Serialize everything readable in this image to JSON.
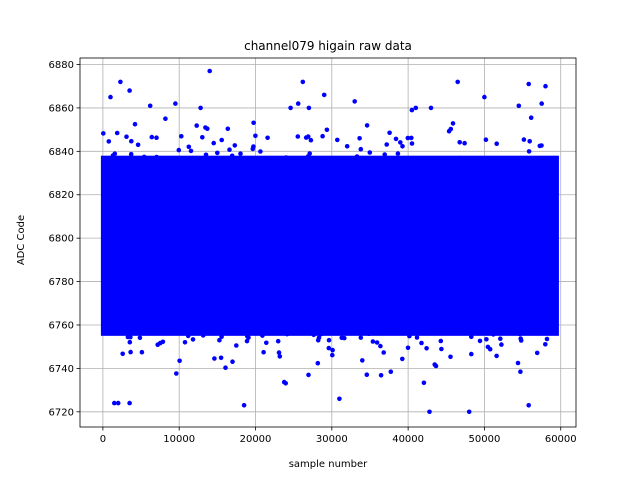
{
  "chart_data": {
    "type": "scatter",
    "title": "channel079 higain raw data",
    "xlabel": "sample number",
    "ylabel": "ADC Code",
    "xlim": [
      -3000,
      62000
    ],
    "ylim": [
      6713,
      6883
    ],
    "xticks": [
      0,
      10000,
      20000,
      30000,
      40000,
      50000,
      60000
    ],
    "yticks": [
      6720,
      6740,
      6760,
      6780,
      6800,
      6820,
      6840,
      6860,
      6880
    ],
    "grid": true,
    "marker_color": "#0000ff",
    "series": [
      {
        "x_range": [
          0,
          59500
        ],
        "dense_band": [
          6745,
          6845
        ],
        "core": [
          6755,
          6838
        ],
        "outliers": [
          [
            1500,
            6724
          ],
          [
            2000,
            6724
          ],
          [
            3500,
            6724
          ],
          [
            42800,
            6720
          ],
          [
            48000,
            6720
          ],
          [
            55800,
            6723
          ],
          [
            18500,
            6723
          ],
          [
            31000,
            6726
          ],
          [
            14000,
            6877
          ],
          [
            26200,
            6872
          ],
          [
            46500,
            6872
          ],
          [
            2300,
            6872
          ],
          [
            3500,
            6868
          ],
          [
            1000,
            6865
          ],
          [
            29000,
            6866
          ],
          [
            33000,
            6863
          ],
          [
            50000,
            6865
          ],
          [
            55800,
            6871
          ],
          [
            58000,
            6870
          ],
          [
            57500,
            6862
          ],
          [
            41000,
            6860
          ],
          [
            43000,
            6860
          ],
          [
            12800,
            6860
          ],
          [
            40500,
            6859
          ],
          [
            25600,
            6862
          ],
          [
            24600,
            6860
          ],
          [
            9500,
            6862
          ],
          [
            6200,
            6861
          ],
          [
            27000,
            6860
          ],
          [
            54500,
            6861
          ]
        ]
      }
    ]
  }
}
